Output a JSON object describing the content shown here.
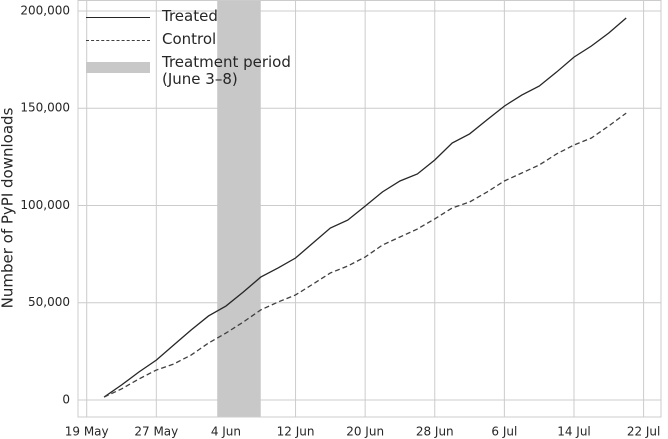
{
  "chart_data": {
    "type": "line",
    "ylabel": "Number of PyPI downloads",
    "x": [
      "05-21",
      "05-23",
      "05-25",
      "05-27",
      "05-29",
      "05-31",
      "06-02",
      "06-04",
      "06-06",
      "06-08",
      "06-10",
      "06-12",
      "06-14",
      "06-16",
      "06-18",
      "06-20",
      "06-22",
      "06-24",
      "06-26",
      "06-28",
      "06-30",
      "07-02",
      "07-04",
      "07-06",
      "07-08",
      "07-10",
      "07-12",
      "07-14",
      "07-16",
      "07-18",
      "07-20"
    ],
    "series": [
      {
        "name": "Treated",
        "color": "#262626",
        "dash": "solid",
        "values": [
          1500,
          7700,
          14400,
          20500,
          28300,
          36000,
          43200,
          48300,
          55500,
          63200,
          67900,
          73000,
          80700,
          88400,
          92500,
          99700,
          107000,
          112600,
          116200,
          123400,
          132100,
          136800,
          144000,
          151100,
          156800,
          161400,
          168600,
          176300,
          182000,
          188700,
          196400
        ]
      },
      {
        "name": "Control",
        "color": "#404040",
        "dash": "dashed",
        "values": [
          1500,
          5700,
          10800,
          15400,
          18500,
          23100,
          29300,
          34400,
          40100,
          46300,
          50400,
          54000,
          59600,
          65300,
          68900,
          73500,
          79700,
          83800,
          87900,
          93100,
          98700,
          101800,
          106900,
          112600,
          116700,
          120800,
          126500,
          131100,
          134700,
          140900,
          147500
        ]
      }
    ],
    "shaded_regions": [
      {
        "name": "Treatment period\n(June 3–8)",
        "color": "#c8c8c8",
        "x": [
          "06-03",
          "06-08"
        ]
      }
    ],
    "xlim": [
      "05-18",
      "07-24"
    ],
    "xticks": [
      {
        "value": "05-19",
        "label": "19 May"
      },
      {
        "value": "05-27",
        "label": "27 May"
      },
      {
        "value": "06-04",
        "label": "4 Jun"
      },
      {
        "value": "06-12",
        "label": "12 Jun"
      },
      {
        "value": "06-20",
        "label": "20 Jun"
      },
      {
        "value": "06-28",
        "label": "28 Jun"
      },
      {
        "value": "07-06",
        "label": "6 Jul"
      },
      {
        "value": "07-14",
        "label": "14 Jul"
      },
      {
        "value": "07-22",
        "label": "22 Jul"
      }
    ],
    "ylim": [
      -8740,
      205650
    ],
    "yticks": [
      0,
      {
        "value": 50000,
        "label": "50,000"
      },
      {
        "value": 100000,
        "label": "100,000"
      },
      {
        "value": 150000,
        "label": "150,000"
      },
      {
        "value": 200000,
        "label": "200,000"
      }
    ],
    "grid": true,
    "legend": "upper-left"
  }
}
